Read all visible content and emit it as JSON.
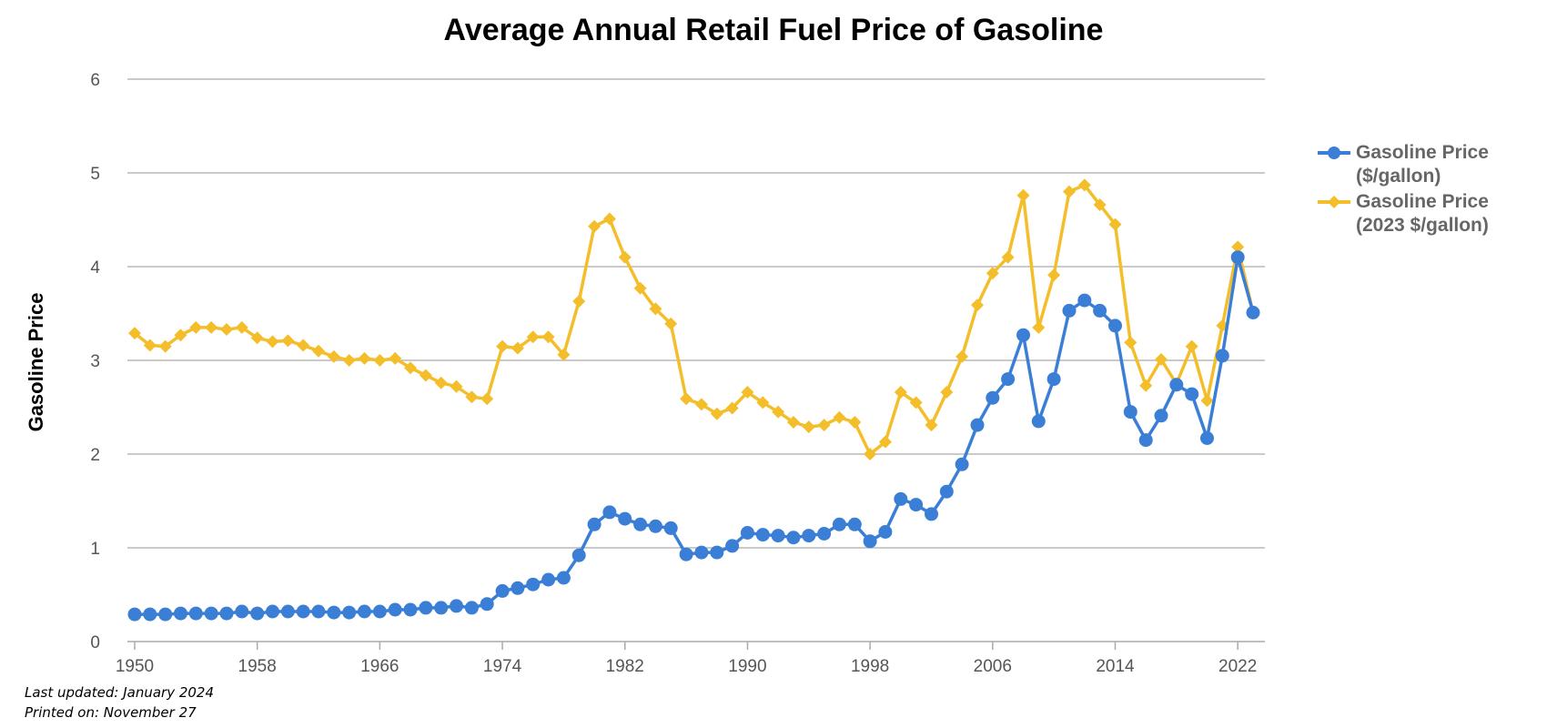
{
  "chart_data": {
    "type": "line",
    "title": "Average Annual Retail Fuel Price of Gasoline",
    "ylabel": "Gasoline Price",
    "xlabel": "",
    "ylim": [
      0,
      6
    ],
    "xlim": [
      1950,
      2023
    ],
    "yticks": [
      "0",
      "1",
      "2",
      "3",
      "4",
      "5",
      "6"
    ],
    "xticks": [
      "1950",
      "1958",
      "1966",
      "1974",
      "1982",
      "1990",
      "1998",
      "2006",
      "2014",
      "2022"
    ],
    "grid": true,
    "legend_position": "right",
    "x": [
      1950,
      1951,
      1952,
      1953,
      1954,
      1955,
      1956,
      1957,
      1958,
      1959,
      1960,
      1961,
      1962,
      1963,
      1964,
      1965,
      1966,
      1967,
      1968,
      1969,
      1970,
      1971,
      1972,
      1973,
      1974,
      1975,
      1976,
      1977,
      1978,
      1979,
      1980,
      1981,
      1982,
      1983,
      1984,
      1985,
      1986,
      1987,
      1988,
      1989,
      1990,
      1991,
      1992,
      1993,
      1994,
      1995,
      1996,
      1997,
      1998,
      1999,
      2000,
      2001,
      2002,
      2003,
      2004,
      2005,
      2006,
      2007,
      2008,
      2009,
      2010,
      2011,
      2012,
      2013,
      2014,
      2015,
      2016,
      2017,
      2018,
      2019,
      2020,
      2021,
      2022,
      2023
    ],
    "series": [
      {
        "name": "Gasoline Price ($/gallon)",
        "color": "#3a7fd5",
        "marker": "circle",
        "values": [
          0.29,
          0.29,
          0.29,
          0.3,
          0.3,
          0.3,
          0.3,
          0.32,
          0.3,
          0.32,
          0.32,
          0.32,
          0.32,
          0.31,
          0.31,
          0.32,
          0.32,
          0.34,
          0.34,
          0.36,
          0.36,
          0.38,
          0.36,
          0.4,
          0.54,
          0.57,
          0.61,
          0.66,
          0.68,
          0.92,
          1.25,
          1.38,
          1.31,
          1.25,
          1.23,
          1.21,
          0.93,
          0.95,
          0.95,
          1.02,
          1.16,
          1.14,
          1.13,
          1.11,
          1.13,
          1.15,
          1.25,
          1.25,
          1.07,
          1.17,
          1.52,
          1.46,
          1.36,
          1.6,
          1.89,
          2.31,
          2.6,
          2.8,
          3.27,
          2.35,
          2.8,
          3.53,
          3.64,
          3.53,
          3.37,
          2.45,
          2.15,
          2.41,
          2.74,
          2.64,
          2.17,
          3.05,
          4.1,
          3.51
        ]
      },
      {
        "name": "Gasoline Price (2023 $/gallon)",
        "color": "#f4be2a",
        "marker": "diamond",
        "values": [
          3.29,
          3.16,
          3.15,
          3.27,
          3.35,
          3.35,
          3.33,
          3.35,
          3.24,
          3.2,
          3.21,
          3.16,
          3.1,
          3.04,
          3.0,
          3.02,
          3.0,
          3.02,
          2.92,
          2.84,
          2.76,
          2.72,
          2.61,
          2.59,
          3.15,
          3.13,
          3.25,
          3.25,
          3.06,
          3.63,
          4.43,
          4.51,
          4.1,
          3.77,
          3.55,
          3.39,
          2.59,
          2.53,
          2.43,
          2.49,
          2.66,
          2.55,
          2.45,
          2.34,
          2.29,
          2.31,
          2.39,
          2.34,
          2.0,
          2.13,
          2.66,
          2.55,
          2.31,
          2.66,
          3.04,
          3.59,
          3.93,
          4.1,
          4.76,
          3.35,
          3.91,
          4.8,
          4.87,
          4.66,
          4.45,
          3.19,
          2.73,
          3.01,
          2.75,
          3.15,
          2.57,
          3.37,
          4.21,
          3.51
        ]
      }
    ]
  },
  "legend": {
    "series0_lines": [
      "Gasoline Price",
      "($/gallon)"
    ],
    "series1_lines": [
      "Gasoline Price",
      "(2023 $/gallon)"
    ]
  },
  "footnotes": {
    "last_updated": "Last updated: January 2024",
    "printed_on": "Printed on: November 27"
  }
}
